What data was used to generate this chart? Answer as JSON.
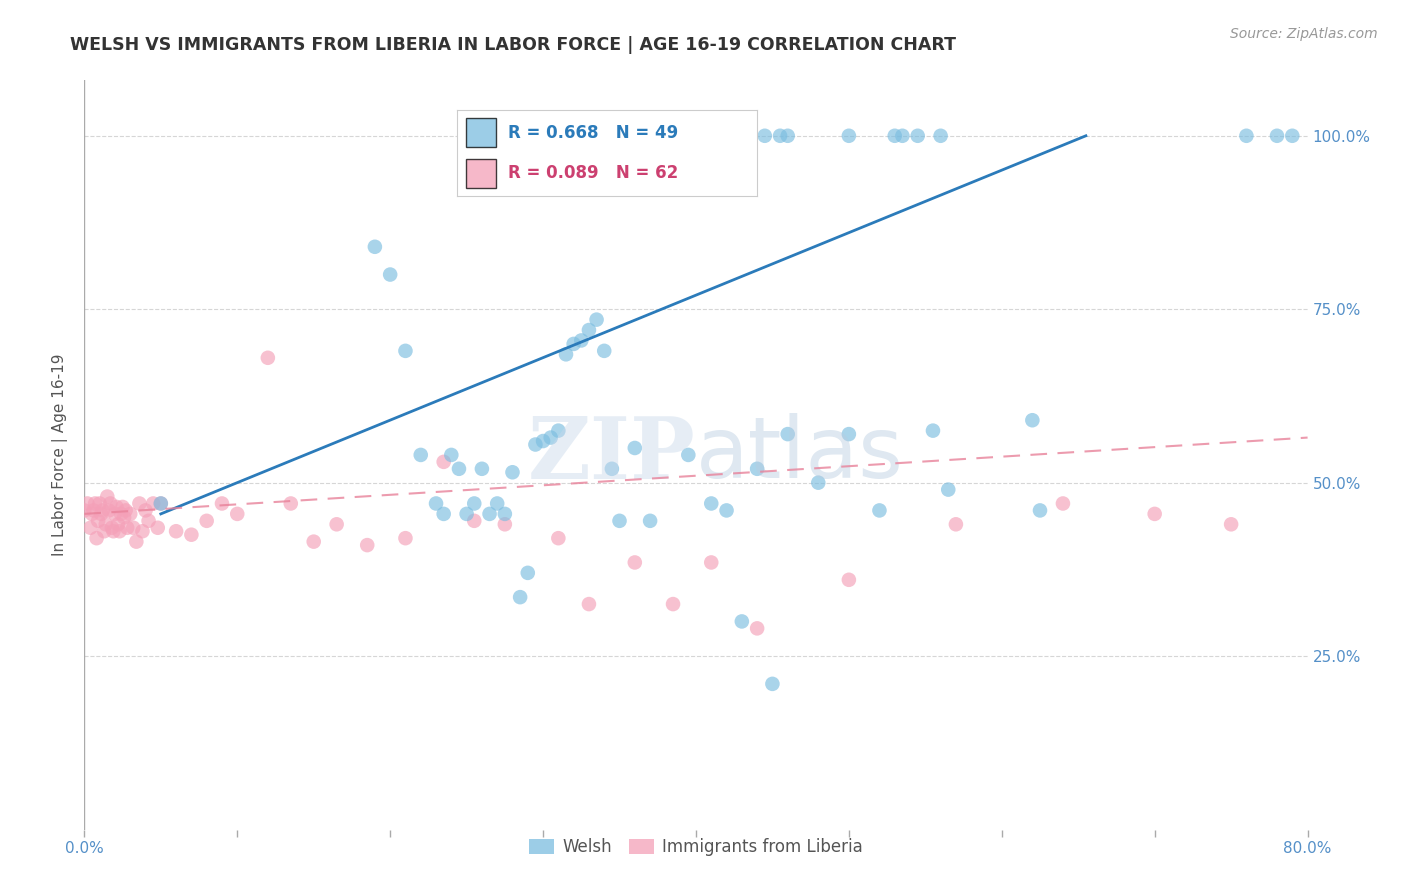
{
  "title": "WELSH VS IMMIGRANTS FROM LIBERIA IN LABOR FORCE | AGE 16-19 CORRELATION CHART",
  "source": "Source: ZipAtlas.com",
  "ylabel": "In Labor Force | Age 16-19",
  "xlim": [
    0.0,
    0.8
  ],
  "ylim": [
    0.0,
    1.08
  ],
  "xticks": [
    0.0,
    0.1,
    0.2,
    0.3,
    0.4,
    0.5,
    0.6,
    0.7,
    0.8
  ],
  "xticklabels": [
    "0.0%",
    "",
    "",
    "",
    "",
    "",
    "",
    "",
    "80.0%"
  ],
  "yticks": [
    0.25,
    0.5,
    0.75,
    1.0
  ],
  "yticklabels": [
    "25.0%",
    "50.0%",
    "75.0%",
    "100.0%"
  ],
  "welsh_R": 0.668,
  "welsh_N": 49,
  "liberia_R": 0.089,
  "liberia_N": 62,
  "welsh_color": "#7bbde0",
  "liberia_color": "#f4a0b8",
  "welsh_line_color": "#2b7bba",
  "liberia_line_color": "#e8829a",
  "background_color": "#ffffff",
  "welsh_x": [
    0.05,
    0.19,
    0.2,
    0.21,
    0.22,
    0.23,
    0.235,
    0.24,
    0.245,
    0.25,
    0.255,
    0.26,
    0.265,
    0.27,
    0.275,
    0.28,
    0.285,
    0.29,
    0.295,
    0.3,
    0.305,
    0.31,
    0.315,
    0.32,
    0.325,
    0.33,
    0.335,
    0.34,
    0.345,
    0.35,
    0.36,
    0.37,
    0.395,
    0.41,
    0.42,
    0.43,
    0.44,
    0.45,
    0.46,
    0.48,
    0.5,
    0.52,
    0.555,
    0.565,
    0.62,
    0.625,
    0.76,
    0.78,
    0.79
  ],
  "welsh_y": [
    0.47,
    0.84,
    0.8,
    0.69,
    0.54,
    0.47,
    0.455,
    0.54,
    0.52,
    0.455,
    0.47,
    0.52,
    0.455,
    0.47,
    0.455,
    0.515,
    0.335,
    0.37,
    0.555,
    0.56,
    0.565,
    0.575,
    0.685,
    0.7,
    0.705,
    0.72,
    0.735,
    0.69,
    0.52,
    0.445,
    0.55,
    0.445,
    0.54,
    0.47,
    0.46,
    0.3,
    0.52,
    0.21,
    0.57,
    0.5,
    0.57,
    0.46,
    0.575,
    0.49,
    0.59,
    0.46,
    1.0,
    1.0,
    1.0
  ],
  "welsh_x_top": [
    0.42,
    0.435,
    0.445,
    0.455,
    0.46,
    0.5,
    0.53,
    0.535,
    0.545,
    0.56
  ],
  "welsh_y_top": [
    1.0,
    1.0,
    1.0,
    1.0,
    1.0,
    1.0,
    1.0,
    1.0,
    1.0,
    1.0
  ],
  "liberia_x": [
    0.0,
    0.002,
    0.004,
    0.005,
    0.006,
    0.007,
    0.008,
    0.009,
    0.01,
    0.011,
    0.012,
    0.013,
    0.014,
    0.015,
    0.016,
    0.017,
    0.018,
    0.019,
    0.02,
    0.021,
    0.022,
    0.023,
    0.024,
    0.025,
    0.026,
    0.027,
    0.028,
    0.03,
    0.032,
    0.034,
    0.036,
    0.038,
    0.04,
    0.042,
    0.045,
    0.048,
    0.05,
    0.06,
    0.07,
    0.08,
    0.09,
    0.1,
    0.12,
    0.135,
    0.15,
    0.165,
    0.185,
    0.21,
    0.235,
    0.255,
    0.275,
    0.31,
    0.33,
    0.36,
    0.385,
    0.41,
    0.44,
    0.5,
    0.57,
    0.64,
    0.7,
    0.75
  ],
  "liberia_y": [
    0.46,
    0.47,
    0.435,
    0.455,
    0.46,
    0.47,
    0.42,
    0.445,
    0.47,
    0.455,
    0.46,
    0.43,
    0.44,
    0.48,
    0.46,
    0.47,
    0.435,
    0.43,
    0.455,
    0.465,
    0.44,
    0.43,
    0.455,
    0.465,
    0.45,
    0.46,
    0.435,
    0.455,
    0.435,
    0.415,
    0.47,
    0.43,
    0.46,
    0.445,
    0.47,
    0.435,
    0.47,
    0.43,
    0.425,
    0.445,
    0.47,
    0.455,
    0.68,
    0.47,
    0.415,
    0.44,
    0.41,
    0.42,
    0.53,
    0.445,
    0.44,
    0.42,
    0.325,
    0.385,
    0.325,
    0.385,
    0.29,
    0.36,
    0.44,
    0.47,
    0.455,
    0.44
  ],
  "welsh_line_x": [
    0.05,
    0.655
  ],
  "welsh_line_y": [
    0.455,
    1.0
  ],
  "liberia_line_x": [
    0.0,
    0.8
  ],
  "liberia_line_y": [
    0.455,
    0.565
  ]
}
